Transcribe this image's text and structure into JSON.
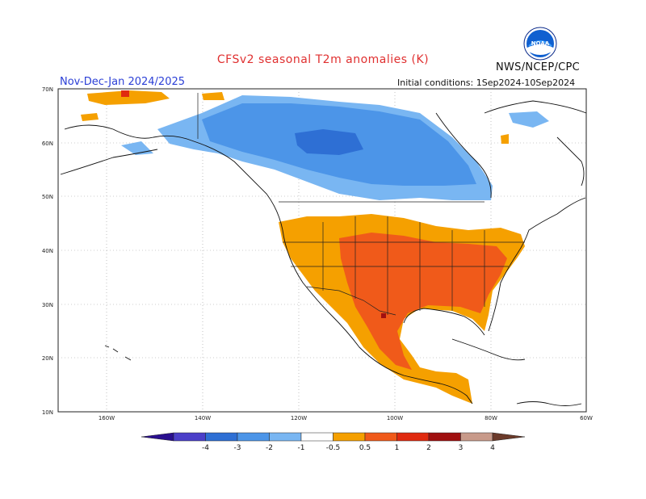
{
  "title": "CFSv2  seasonal  T2m  anomalies  (K)",
  "period": "Nov-Dec-Jan 2024/2025",
  "agency": "NWS/NCEP/CPC",
  "initial_conditions": "Initial conditions:  1Sep2024-10Sep2024",
  "logo_text": "NOAA",
  "lat_labels": [
    "70N",
    "60N",
    "50N",
    "40N",
    "30N",
    "20N",
    "10N"
  ],
  "lon_labels": [
    "160W",
    "140W",
    "120W",
    "100W",
    "80W",
    "60W"
  ],
  "colorbar": {
    "labels": [
      "-4",
      "-3",
      "-2",
      "-1",
      "-0.5",
      "0.5",
      "1",
      "2",
      "3",
      "4"
    ],
    "colors": [
      "#2a0f8f",
      "#4b3fc9",
      "#2e6fd4",
      "#4c95e8",
      "#79b6f2",
      "#ffffff",
      "#f5a000",
      "#f05a1a",
      "#e02a10",
      "#a01010",
      "#c89a8a",
      "#6b3a2a"
    ]
  },
  "colors": {
    "title": "#e03030",
    "period": "#2b3fd6",
    "cool_light": "#79b6f2",
    "cool_mid": "#4c95e8",
    "cool_dark": "#2e6fd4",
    "warm_light": "#f5a000",
    "warm_mid": "#f05a1a",
    "warm_dark": "#e02a10",
    "warm_deep": "#a01010"
  }
}
